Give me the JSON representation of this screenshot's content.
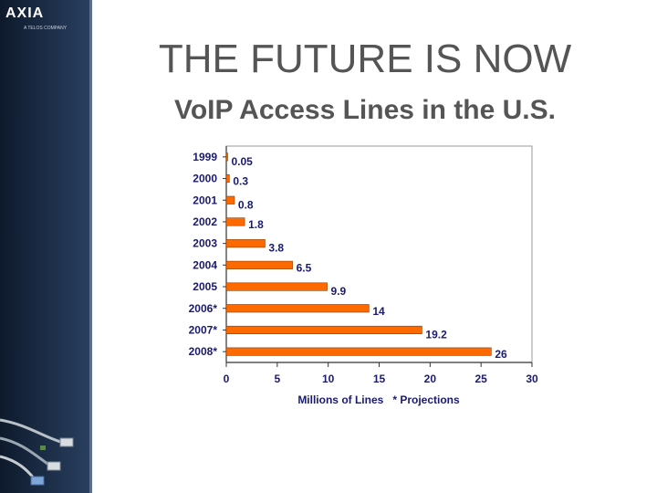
{
  "slide": {
    "logo_text": "AXIA",
    "logo_subtext": "A TELOS COMPANY",
    "title": "THE FUTURE IS NOW",
    "subtitle": "VoIP Access Lines in the U.S."
  },
  "chart_data": {
    "type": "bar",
    "orientation": "horizontal",
    "categories": [
      "1999",
      "2000",
      "2001",
      "2002",
      "2003",
      "2004",
      "2005",
      "2006*",
      "2007*",
      "2008*"
    ],
    "values": [
      0.05,
      0.3,
      0.8,
      1.8,
      3.8,
      6.5,
      9.9,
      14,
      19.2,
      26
    ],
    "value_labels": [
      "0.05",
      "0.3",
      "0.8",
      "1.8",
      "3.8",
      "6.5",
      "9.9",
      "14",
      "19.2",
      "26"
    ],
    "xlabel": "Millions of Lines   * Projections",
    "xlim": [
      0,
      30
    ],
    "xticks": [
      0,
      5,
      10,
      15,
      20,
      25,
      30
    ],
    "grid": false,
    "legend": "none",
    "bar_color": "#ff6a00",
    "bar_edge_color": "#8a3a00",
    "text_color": "#1a1a70"
  }
}
